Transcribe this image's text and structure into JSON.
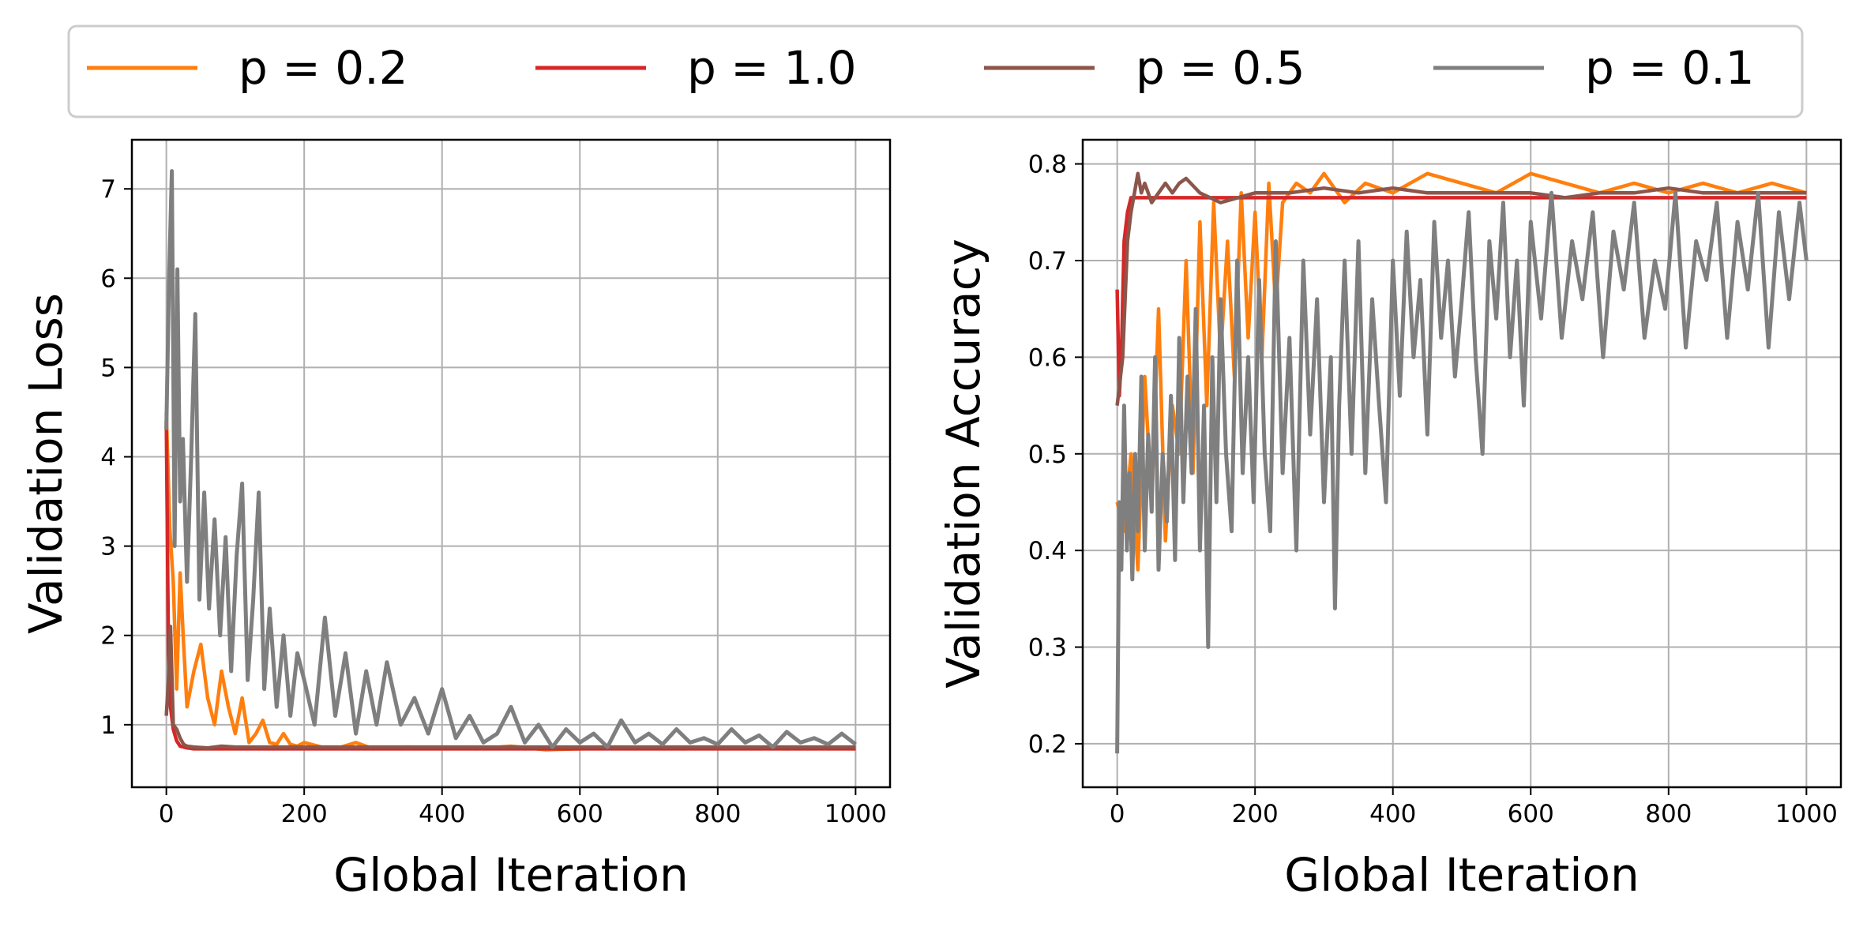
{
  "legend": {
    "placement": "top-center",
    "entries": [
      {
        "label": "p = 0.2",
        "color": "#ff7f0e"
      },
      {
        "label": "p = 1.0",
        "color": "#d62728"
      },
      {
        "label": "p = 0.5",
        "color": "#8c564b"
      },
      {
        "label": "p = 0.1",
        "color": "#7f7f7f"
      }
    ]
  },
  "chart_data": [
    {
      "type": "line",
      "xlabel": "Global Iteration",
      "ylabel": "Validation Loss",
      "xlim": [
        -50,
        1050
      ],
      "ylim": [
        0.3,
        7.55
      ],
      "grid": true,
      "xticks": [
        0,
        200,
        400,
        600,
        800,
        1000
      ],
      "yticks": [
        1,
        2,
        3,
        4,
        5,
        6,
        7
      ],
      "series": [
        {
          "name": "p = 0.2",
          "color": "#ff7f0e",
          "x": [
            0,
            5,
            10,
            15,
            20,
            25,
            30,
            40,
            50,
            60,
            70,
            80,
            90,
            100,
            110,
            120,
            130,
            140,
            150,
            160,
            170,
            180,
            190,
            200,
            225,
            250,
            275,
            300,
            350,
            400,
            450,
            500,
            550,
            600,
            650,
            700,
            750,
            800,
            850,
            900,
            950,
            1000
          ],
          "y": [
            4.5,
            3.2,
            2.6,
            1.4,
            2.7,
            1.9,
            1.2,
            1.6,
            1.9,
            1.3,
            1.0,
            1.6,
            1.2,
            0.9,
            1.3,
            0.8,
            0.9,
            1.05,
            0.8,
            0.78,
            0.9,
            0.78,
            0.76,
            0.8,
            0.75,
            0.74,
            0.8,
            0.73,
            0.75,
            0.74,
            0.73,
            0.76,
            0.72,
            0.73,
            0.75,
            0.74,
            0.73,
            0.75,
            0.74,
            0.73,
            0.74,
            0.73
          ]
        },
        {
          "name": "p = 1.0",
          "color": "#d62728",
          "x": [
            0,
            3,
            6,
            10,
            15,
            20,
            30,
            40,
            60,
            100,
            200,
            300,
            400,
            500,
            600,
            700,
            800,
            900,
            1000
          ],
          "y": [
            4.4,
            1.8,
            1.2,
            0.95,
            0.82,
            0.76,
            0.74,
            0.73,
            0.73,
            0.73,
            0.73,
            0.73,
            0.73,
            0.73,
            0.73,
            0.73,
            0.73,
            0.73,
            0.73
          ]
        },
        {
          "name": "p = 0.5",
          "color": "#8c564b",
          "x": [
            0,
            3,
            6,
            10,
            15,
            20,
            25,
            30,
            40,
            60,
            80,
            100,
            150,
            200,
            300,
            400,
            500,
            600,
            700,
            800,
            900,
            1000
          ],
          "y": [
            1.1,
            1.5,
            2.1,
            1.0,
            0.95,
            0.85,
            0.78,
            0.76,
            0.75,
            0.74,
            0.76,
            0.75,
            0.75,
            0.75,
            0.75,
            0.75,
            0.75,
            0.75,
            0.75,
            0.75,
            0.75,
            0.75
          ]
        },
        {
          "name": "p = 0.1",
          "color": "#7f7f7f",
          "x": [
            0,
            4,
            8,
            12,
            16,
            20,
            24,
            30,
            36,
            42,
            48,
            55,
            62,
            70,
            78,
            86,
            94,
            102,
            110,
            118,
            126,
            134,
            142,
            150,
            160,
            170,
            180,
            190,
            200,
            215,
            230,
            245,
            260,
            275,
            290,
            305,
            320,
            340,
            360,
            380,
            400,
            420,
            440,
            460,
            480,
            500,
            520,
            540,
            560,
            580,
            600,
            620,
            640,
            660,
            680,
            700,
            720,
            740,
            760,
            780,
            800,
            820,
            840,
            860,
            880,
            900,
            920,
            940,
            960,
            980,
            1000
          ],
          "y": [
            4.3,
            6.0,
            7.2,
            3.0,
            6.1,
            3.5,
            4.2,
            2.6,
            4.0,
            5.6,
            2.4,
            3.6,
            2.3,
            3.3,
            2.0,
            3.1,
            1.6,
            2.9,
            3.7,
            1.5,
            2.4,
            3.6,
            1.4,
            2.3,
            1.2,
            2.0,
            1.1,
            1.8,
            1.5,
            1.0,
            2.2,
            1.1,
            1.8,
            0.9,
            1.6,
            1.0,
            1.7,
            1.0,
            1.3,
            0.9,
            1.4,
            0.85,
            1.1,
            0.8,
            0.9,
            1.2,
            0.8,
            1.0,
            0.75,
            0.95,
            0.8,
            0.9,
            0.75,
            1.05,
            0.8,
            0.9,
            0.78,
            0.95,
            0.8,
            0.85,
            0.78,
            0.95,
            0.8,
            0.88,
            0.75,
            0.92,
            0.8,
            0.85,
            0.78,
            0.9,
            0.78
          ]
        }
      ]
    },
    {
      "type": "line",
      "xlabel": "Global Iteration",
      "ylabel": "Validation Accuracy",
      "xlim": [
        -50,
        1050
      ],
      "ylim": [
        0.155,
        0.825
      ],
      "grid": true,
      "xticks": [
        0,
        200,
        400,
        600,
        800,
        1000
      ],
      "yticks": [
        0.2,
        0.3,
        0.4,
        0.5,
        0.6,
        0.7,
        0.8
      ],
      "series": [
        {
          "name": "p = 0.2",
          "color": "#ff7f0e",
          "x": [
            0,
            10,
            20,
            30,
            40,
            50,
            60,
            70,
            80,
            90,
            100,
            110,
            120,
            130,
            140,
            150,
            160,
            170,
            180,
            190,
            200,
            210,
            220,
            230,
            240,
            260,
            280,
            300,
            330,
            360,
            400,
            450,
            500,
            550,
            600,
            650,
            700,
            750,
            800,
            850,
            900,
            950,
            1000
          ],
          "y": [
            0.45,
            0.42,
            0.5,
            0.38,
            0.58,
            0.45,
            0.65,
            0.41,
            0.55,
            0.5,
            0.7,
            0.48,
            0.74,
            0.55,
            0.76,
            0.6,
            0.72,
            0.58,
            0.77,
            0.62,
            0.75,
            0.6,
            0.78,
            0.65,
            0.76,
            0.78,
            0.77,
            0.79,
            0.76,
            0.78,
            0.77,
            0.79,
            0.78,
            0.77,
            0.79,
            0.78,
            0.77,
            0.78,
            0.77,
            0.78,
            0.77,
            0.78,
            0.77
          ]
        },
        {
          "name": "p = 1.0",
          "color": "#d62728",
          "x": [
            0,
            3,
            6,
            10,
            15,
            20,
            30,
            50,
            100,
            200,
            300,
            400,
            500,
            600,
            700,
            800,
            900,
            1000
          ],
          "y": [
            0.67,
            0.56,
            0.6,
            0.72,
            0.75,
            0.765,
            0.765,
            0.765,
            0.765,
            0.765,
            0.765,
            0.765,
            0.765,
            0.765,
            0.765,
            0.765,
            0.765,
            0.765
          ]
        },
        {
          "name": "p = 0.5",
          "color": "#8c564b",
          "x": [
            0,
            8,
            15,
            20,
            25,
            30,
            35,
            40,
            50,
            60,
            70,
            80,
            90,
            100,
            120,
            150,
            200,
            250,
            300,
            350,
            400,
            450,
            500,
            550,
            600,
            650,
            700,
            750,
            800,
            850,
            900,
            950,
            1000
          ],
          "y": [
            0.55,
            0.6,
            0.72,
            0.75,
            0.77,
            0.79,
            0.77,
            0.78,
            0.76,
            0.77,
            0.78,
            0.77,
            0.78,
            0.785,
            0.77,
            0.76,
            0.77,
            0.77,
            0.775,
            0.77,
            0.775,
            0.77,
            0.77,
            0.77,
            0.77,
            0.765,
            0.77,
            0.77,
            0.775,
            0.77,
            0.77,
            0.77,
            0.77
          ]
        },
        {
          "name": "p = 0.1",
          "color": "#7f7f7f",
          "x": [
            0,
            3,
            6,
            10,
            14,
            18,
            22,
            26,
            30,
            35,
            40,
            45,
            50,
            55,
            60,
            66,
            72,
            78,
            84,
            90,
            96,
            102,
            108,
            114,
            120,
            126,
            132,
            138,
            144,
            150,
            158,
            166,
            174,
            182,
            190,
            198,
            206,
            214,
            222,
            230,
            240,
            250,
            260,
            270,
            280,
            290,
            300,
            310,
            316,
            322,
            330,
            340,
            350,
            360,
            370,
            380,
            390,
            400,
            410,
            420,
            430,
            440,
            450,
            460,
            470,
            480,
            490,
            500,
            510,
            520,
            530,
            540,
            550,
            560,
            570,
            580,
            590,
            600,
            615,
            630,
            645,
            660,
            675,
            690,
            705,
            720,
            735,
            750,
            765,
            780,
            795,
            810,
            825,
            840,
            855,
            870,
            885,
            900,
            915,
            930,
            945,
            960,
            975,
            990,
            1000
          ],
          "y": [
            0.19,
            0.45,
            0.38,
            0.55,
            0.4,
            0.48,
            0.37,
            0.5,
            0.42,
            0.58,
            0.4,
            0.52,
            0.44,
            0.6,
            0.38,
            0.5,
            0.43,
            0.56,
            0.39,
            0.62,
            0.45,
            0.58,
            0.48,
            0.65,
            0.4,
            0.55,
            0.3,
            0.6,
            0.45,
            0.66,
            0.5,
            0.42,
            0.7,
            0.48,
            0.6,
            0.45,
            0.68,
            0.5,
            0.42,
            0.72,
            0.48,
            0.62,
            0.4,
            0.7,
            0.52,
            0.66,
            0.45,
            0.6,
            0.34,
            0.55,
            0.7,
            0.5,
            0.72,
            0.48,
            0.66,
            0.55,
            0.45,
            0.7,
            0.56,
            0.73,
            0.6,
            0.68,
            0.52,
            0.74,
            0.62,
            0.7,
            0.58,
            0.66,
            0.75,
            0.6,
            0.5,
            0.72,
            0.64,
            0.76,
            0.6,
            0.7,
            0.55,
            0.74,
            0.64,
            0.77,
            0.62,
            0.72,
            0.66,
            0.75,
            0.6,
            0.73,
            0.67,
            0.76,
            0.62,
            0.7,
            0.65,
            0.77,
            0.61,
            0.72,
            0.68,
            0.76,
            0.62,
            0.74,
            0.67,
            0.77,
            0.61,
            0.75,
            0.66,
            0.76,
            0.7
          ]
        }
      ]
    }
  ]
}
